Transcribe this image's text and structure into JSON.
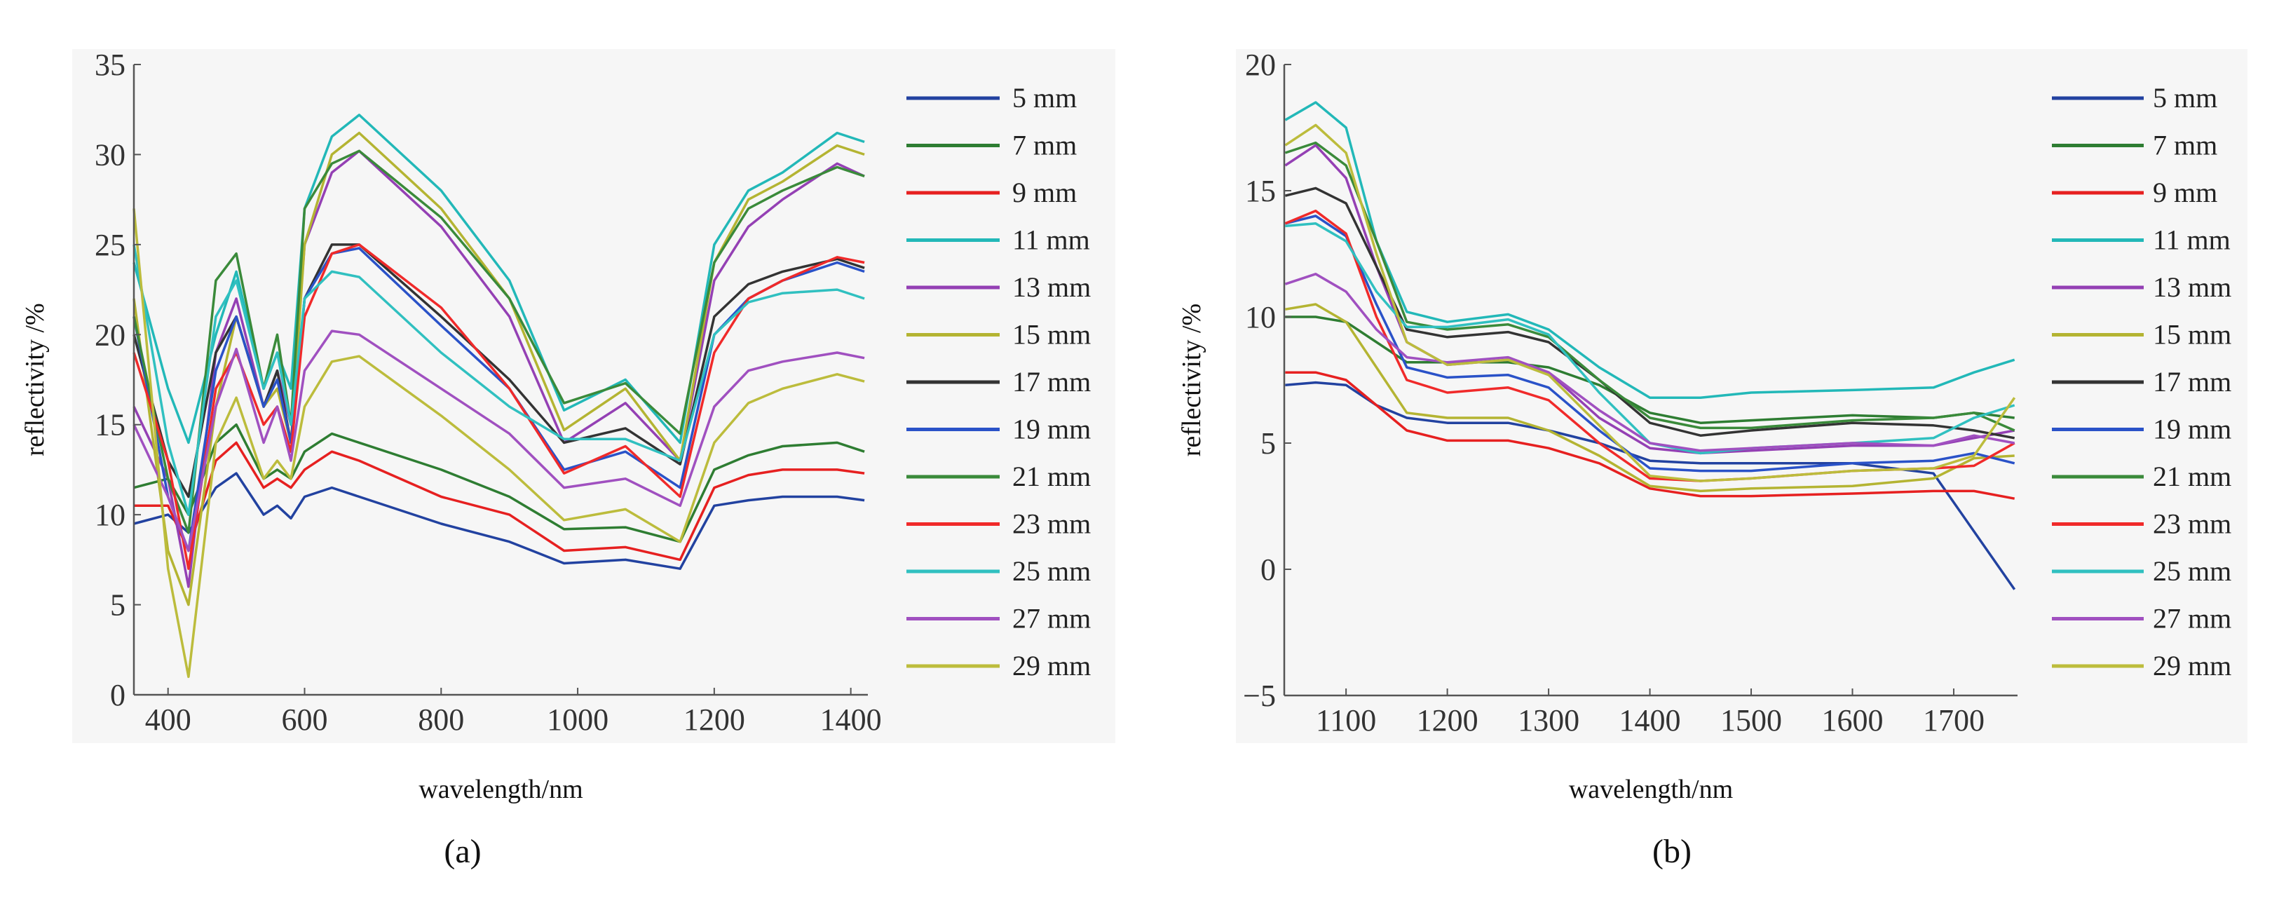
{
  "chart_data": [
    {
      "type": "line",
      "panel_label": "(a)",
      "xlabel": "wavelength/nm",
      "ylabel": "reflectivity /%",
      "xlim": [
        350,
        1425
      ],
      "ylim": [
        0,
        35
      ],
      "xticks": [
        400,
        600,
        800,
        1000,
        1200,
        1400
      ],
      "yticks": [
        0,
        5,
        10,
        15,
        20,
        25,
        30,
        35
      ],
      "ytick_labels": [
        "0",
        "5",
        "10",
        "15",
        "20",
        "25",
        "30",
        "35"
      ],
      "grid": false,
      "legend_position": "right",
      "x": [
        350,
        400,
        430,
        470,
        500,
        540,
        560,
        580,
        600,
        640,
        680,
        800,
        900,
        980,
        1070,
        1150,
        1200,
        1250,
        1300,
        1380,
        1420
      ],
      "series": [
        {
          "name": "5 mm",
          "color": "#2242a0",
          "values": [
            9.5,
            10,
            9,
            11.5,
            12.3,
            10,
            10.5,
            9.8,
            11,
            11.5,
            11,
            9.5,
            8.5,
            7.3,
            7.5,
            7,
            10.5,
            10.8,
            11,
            11,
            10.8
          ]
        },
        {
          "name": "7 mm",
          "color": "#2e7d32",
          "values": [
            11.5,
            12,
            10,
            14,
            15,
            12,
            12.5,
            12,
            13.5,
            14.5,
            14,
            12.5,
            11,
            9.2,
            9.3,
            8.5,
            12.5,
            13.3,
            13.8,
            14,
            13.5
          ]
        },
        {
          "name": "9 mm",
          "color": "#e62020",
          "values": [
            10.5,
            10.5,
            8,
            13,
            14,
            11.5,
            12,
            11.5,
            12.5,
            13.5,
            13,
            11,
            10,
            8,
            8.2,
            7.5,
            11.5,
            12.2,
            12.5,
            12.5,
            12.3
          ]
        },
        {
          "name": "11 mm",
          "color": "#22b8b8",
          "values": [
            24,
            17,
            14,
            20,
            23.5,
            17,
            19,
            17,
            27,
            31,
            32.2,
            28,
            23,
            15.8,
            17.5,
            14,
            25,
            28,
            29,
            31.2,
            30.7
          ]
        },
        {
          "name": "13 mm",
          "color": "#9440b4",
          "values": [
            16,
            12,
            6,
            19,
            22,
            16,
            18,
            15,
            25,
            29,
            30.2,
            26,
            21,
            14,
            16.2,
            13,
            23,
            26,
            27.5,
            29.5,
            28.8
          ]
        },
        {
          "name": "15 mm",
          "color": "#b4b432",
          "values": [
            22,
            8,
            5,
            16,
            21,
            16,
            17,
            14,
            25,
            30,
            31.2,
            27,
            22,
            14.7,
            17,
            13,
            24,
            27.5,
            28.5,
            30.5,
            30
          ]
        },
        {
          "name": "17 mm",
          "color": "#333333",
          "values": [
            20,
            13,
            11,
            19,
            21,
            16,
            18,
            14,
            22,
            25,
            25,
            21,
            17.5,
            14,
            14.8,
            12.8,
            21,
            22.8,
            23.5,
            24.2,
            23.7
          ]
        },
        {
          "name": "19 mm",
          "color": "#2a52c8",
          "values": [
            21,
            11,
            8,
            18,
            21,
            16,
            17.5,
            14,
            22,
            24.5,
            24.8,
            20.5,
            17,
            12.5,
            13.5,
            11.5,
            20,
            22,
            23,
            24,
            23.5
          ]
        },
        {
          "name": "21 mm",
          "color": "#3a8a3a",
          "values": [
            21,
            12,
            9,
            23,
            24.5,
            17,
            20,
            15,
            27,
            29.5,
            30.2,
            26.5,
            22,
            16.2,
            17.3,
            14.5,
            24,
            27,
            28,
            29.3,
            28.8
          ]
        },
        {
          "name": "23 mm",
          "color": "#f02a2a",
          "values": [
            19,
            13,
            7,
            17,
            19,
            15,
            16,
            13.5,
            21,
            24.5,
            25,
            21.5,
            17,
            12.3,
            13.8,
            11,
            19,
            22,
            23,
            24.3,
            24
          ]
        },
        {
          "name": "25 mm",
          "color": "#30c0c0",
          "values": [
            25,
            14,
            10,
            21,
            23,
            17,
            19,
            15,
            22,
            23.5,
            23.2,
            19,
            16,
            14.2,
            14.2,
            13,
            20,
            21.8,
            22.3,
            22.5,
            22
          ]
        },
        {
          "name": "27 mm",
          "color": "#a050c0",
          "values": [
            15,
            11,
            8,
            16,
            19.2,
            14,
            16,
            13,
            18,
            20.2,
            20,
            17,
            14.5,
            11.5,
            12,
            10.5,
            16,
            18,
            18.5,
            19,
            18.7
          ]
        },
        {
          "name": "29 mm",
          "color": "#bcbc3c",
          "values": [
            27,
            7,
            1,
            14,
            16.5,
            12,
            13,
            12,
            16,
            18.5,
            18.8,
            15.5,
            12.5,
            9.7,
            10.3,
            8.5,
            14,
            16.2,
            17,
            17.8,
            17.4
          ]
        }
      ]
    },
    {
      "type": "line",
      "panel_label": "(b)",
      "xlabel": "wavelength/nm",
      "ylabel": "reflectivity /%",
      "xlim": [
        1039,
        1763
      ],
      "ylim": [
        -5,
        20
      ],
      "xticks": [
        1100,
        1200,
        1300,
        1400,
        1500,
        1600,
        1700
      ],
      "yticks": [
        -5,
        0,
        5,
        10,
        15,
        20
      ],
      "ytick_labels": [
        "−5",
        "0",
        "5",
        "10",
        "15",
        "20"
      ],
      "grid": false,
      "legend_position": "right",
      "x": [
        1040,
        1070,
        1100,
        1130,
        1160,
        1200,
        1260,
        1300,
        1350,
        1400,
        1450,
        1500,
        1600,
        1680,
        1720,
        1760
      ],
      "series": [
        {
          "name": "5 mm",
          "color": "#2242a0",
          "values": [
            7.3,
            7.4,
            7.3,
            6.5,
            6,
            5.8,
            5.8,
            5.5,
            5,
            4.3,
            4.2,
            4.2,
            4.2,
            3.8,
            1.5,
            -0.8
          ]
        },
        {
          "name": "7 mm",
          "color": "#2e7d32",
          "values": [
            10,
            10,
            9.8,
            9,
            8.2,
            8.2,
            8.2,
            8,
            7.3,
            6.2,
            5.8,
            5.9,
            6.1,
            6,
            6.2,
            6
          ]
        },
        {
          "name": "9 mm",
          "color": "#e62020",
          "values": [
            7.8,
            7.8,
            7.5,
            6.5,
            5.5,
            5.1,
            5.1,
            4.8,
            4.2,
            3.2,
            2.9,
            2.9,
            3,
            3.1,
            3.1,
            2.8
          ]
        },
        {
          "name": "11 mm",
          "color": "#22b8b8",
          "values": [
            17.8,
            18.5,
            17.5,
            13,
            10.2,
            9.8,
            10.1,
            9.5,
            8,
            6.8,
            6.8,
            7,
            7.1,
            7.2,
            7.8,
            8.3
          ]
        },
        {
          "name": "13 mm",
          "color": "#9440b4",
          "values": [
            16,
            16.8,
            15.5,
            12,
            9,
            8.1,
            8.3,
            7.8,
            6,
            4.8,
            4.6,
            4.7,
            4.9,
            4.9,
            5.2,
            5.5
          ]
        },
        {
          "name": "15 mm",
          "color": "#b4b432",
          "values": [
            10.3,
            10.5,
            9.8,
            8,
            6.2,
            6,
            6,
            5.5,
            4.5,
            3.3,
            3.1,
            3.2,
            3.3,
            3.6,
            4.4,
            4.5
          ]
        },
        {
          "name": "17 mm",
          "color": "#333333",
          "values": [
            14.8,
            15.1,
            14.5,
            12,
            9.5,
            9.2,
            9.4,
            9,
            7.5,
            5.8,
            5.3,
            5.5,
            5.8,
            5.7,
            5.5,
            5.2
          ]
        },
        {
          "name": "19 mm",
          "color": "#2a52c8",
          "values": [
            13.7,
            14,
            13.2,
            10.5,
            8,
            7.6,
            7.7,
            7.2,
            5.5,
            4,
            3.9,
            3.9,
            4.2,
            4.3,
            4.6,
            4.2
          ]
        },
        {
          "name": "21 mm",
          "color": "#3a8a3a",
          "values": [
            16.5,
            16.9,
            16,
            13,
            9.8,
            9.5,
            9.7,
            9.2,
            7.5,
            6,
            5.6,
            5.6,
            5.9,
            6,
            6.2,
            5.5
          ]
        },
        {
          "name": "23 mm",
          "color": "#f02a2a",
          "values": [
            13.7,
            14.2,
            13.3,
            10,
            7.5,
            7,
            7.2,
            6.7,
            5,
            3.6,
            3.5,
            3.6,
            3.9,
            4,
            4.1,
            5
          ]
        },
        {
          "name": "25 mm",
          "color": "#30c0c0",
          "values": [
            13.6,
            13.7,
            13,
            11,
            9.6,
            9.6,
            9.9,
            9.3,
            7,
            5,
            4.6,
            4.8,
            5,
            5.2,
            6,
            6.5
          ]
        },
        {
          "name": "27 mm",
          "color": "#a050c0",
          "values": [
            11.3,
            11.7,
            11,
            9.5,
            8.4,
            8.2,
            8.4,
            7.8,
            6.3,
            5,
            4.7,
            4.8,
            5,
            4.9,
            5.3,
            5
          ]
        },
        {
          "name": "29 mm",
          "color": "#bcbc3c",
          "values": [
            16.8,
            17.6,
            16.5,
            12.5,
            9,
            8.1,
            8.3,
            7.7,
            5.7,
            3.7,
            3.5,
            3.6,
            3.9,
            4,
            4.5,
            6.8
          ]
        }
      ]
    }
  ]
}
